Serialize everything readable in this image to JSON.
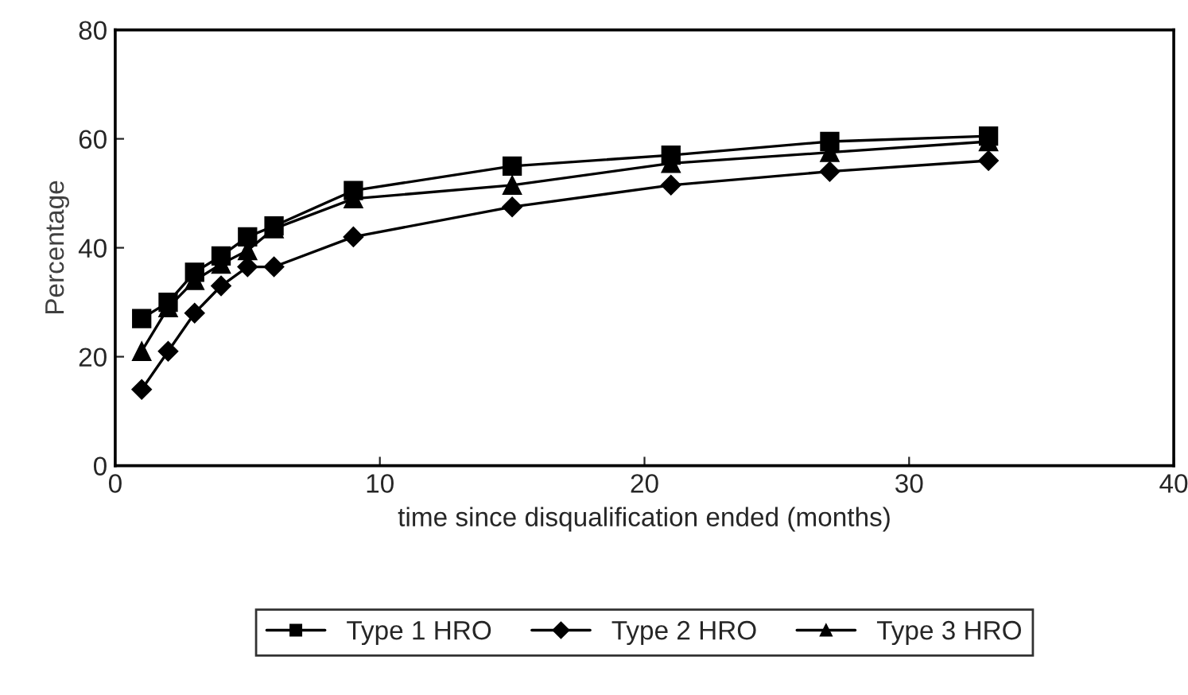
{
  "chart_data": {
    "type": "line",
    "xlabel": "time since disqualification ended (months)",
    "ylabel": "Percentage",
    "x": [
      1,
      2,
      3,
      4,
      5,
      6,
      9,
      15,
      21,
      27,
      33
    ],
    "series": [
      {
        "name": "Type 1 HRO",
        "color": "#000000",
        "marker": "square",
        "values": [
          27,
          30,
          35.5,
          38.5,
          42,
          44,
          50.5,
          55,
          57,
          59.5,
          60.5
        ]
      },
      {
        "name": "Type 2 HRO",
        "color": "#000000",
        "marker": "diamond",
        "values": [
          14,
          21,
          28,
          33,
          36.5,
          36.5,
          42,
          47.5,
          51.5,
          54,
          56
        ]
      },
      {
        "name": "Type 3 HRO",
        "color": "#000000",
        "marker": "triangle",
        "values": [
          21,
          29,
          34,
          37,
          39.5,
          43.5,
          49,
          51.5,
          55.5,
          57.5,
          59.5
        ]
      }
    ],
    "xlim": [
      0,
      40
    ],
    "xticks": [
      0,
      10,
      20,
      30,
      40
    ],
    "ylim": [
      0,
      80
    ],
    "yticks": [
      0,
      20,
      40,
      60,
      80
    ],
    "grid": false,
    "legend": "bottom",
    "line_style": "solid"
  }
}
